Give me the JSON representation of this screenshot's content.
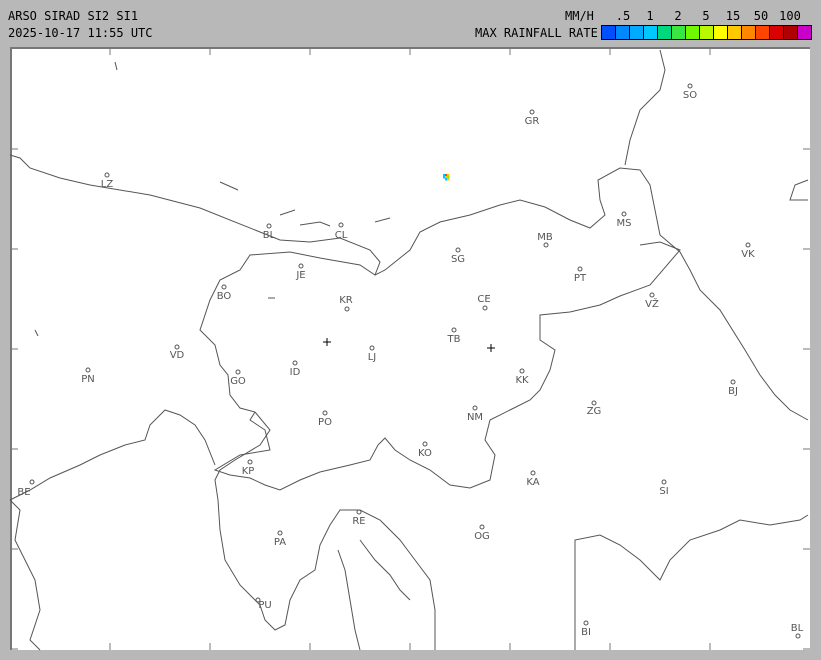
{
  "header": {
    "title": "ARSO SIRAD SI2 SI1",
    "timestamp": "2025-10-17 11:55 UTC"
  },
  "legend": {
    "unit": "MM/H",
    "label": "MAX RAINFALL RATE",
    "ticks": [
      ".5",
      "1",
      "2",
      "5",
      "15",
      "50",
      "100"
    ],
    "colors": [
      "#0050ff",
      "#0088ff",
      "#00aaff",
      "#00c8ff",
      "#00d880",
      "#38e840",
      "#70f800",
      "#b8f800",
      "#ffff00",
      "#ffc800",
      "#ff8800",
      "#ff4400",
      "#d80000",
      "#b00000",
      "#c800c8"
    ]
  },
  "map": {
    "cities": [
      "SO",
      "GR",
      "LZ",
      "BL",
      "CL",
      "MB",
      "SG",
      "MS",
      "VK",
      "JE",
      "PT",
      "BO",
      "KR",
      "CE",
      "VŽ",
      "TB",
      "VD",
      "LJ",
      "ID",
      "PN",
      "GO",
      "KK",
      "BJ",
      "ZG",
      "NM",
      "PO",
      "KO",
      "KP",
      "KA",
      "SI",
      "BE",
      "RE",
      "PA",
      "OG",
      "PU",
      "BI",
      "BL"
    ],
    "radar_markers": [
      "cross-icon",
      "cross-icon"
    ],
    "echo_colors": [
      "#00c8ff",
      "#ffc800",
      "#70f800",
      "#ff4400"
    ]
  }
}
